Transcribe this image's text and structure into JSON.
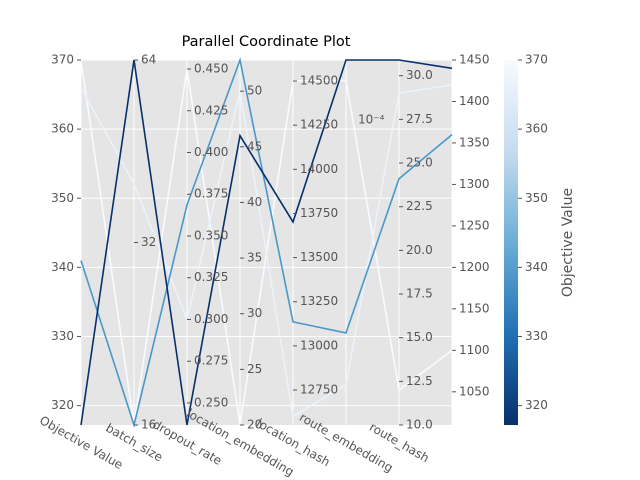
{
  "chart_data": {
    "type": "parallel",
    "title": "Parallel Coordinate Plot",
    "axes": [
      {
        "name": "Objective Value",
        "ylim": [
          317.2,
          370
        ],
        "yticks": [
          320,
          330,
          340,
          350,
          360,
          370
        ]
      },
      {
        "name": "batch_size",
        "ylim": [
          16,
          64
        ],
        "log": true,
        "yticks": [
          16,
          32,
          64
        ]
      },
      {
        "name": "dropout_rate",
        "ylim": [
          0.2368,
          0.4554
        ],
        "yticks": [
          {
            "value": 0.25,
            "label": "0.250"
          },
          {
            "value": 0.275,
            "label": "0.275"
          },
          {
            "value": 0.3,
            "label": "0.300"
          },
          {
            "value": 0.325,
            "label": "0.325"
          },
          {
            "value": 0.35,
            "label": "0.350"
          },
          {
            "value": 0.375,
            "label": "0.375"
          },
          {
            "value": 0.4,
            "label": "0.400"
          },
          {
            "value": 0.425,
            "label": "0.425"
          },
          {
            "value": 0.45,
            "label": "0.450"
          }
        ]
      },
      {
        "name": "location_embedding",
        "ylim": [
          20,
          52.8
        ],
        "yticks": [
          20,
          25,
          30,
          35,
          40,
          45,
          50
        ]
      },
      {
        "name": "location_hash",
        "ylim": [
          12552,
          14619
        ],
        "yticks": [
          12750,
          13000,
          13250,
          13500,
          13750,
          14000,
          14250,
          14500
        ]
      },
      {
        "name": "route_embedding",
        "ylim": [
          1,
          10
        ],
        "yticks": [],
        "offset_label": "10⁻⁴"
      },
      {
        "name": "route_hash",
        "ylim": [
          10,
          30.9
        ],
        "yticks": [
          {
            "value": 10,
            "label": "10.0"
          },
          12.5,
          {
            "value": 15,
            "label": "15.0"
          },
          17.5,
          {
            "value": 20,
            "label": "20.0"
          },
          22.5,
          {
            "value": 25,
            "label": "25.0"
          },
          27.5,
          {
            "value": 30,
            "label": "30.0"
          }
        ]
      },
      {
        "name": null,
        "ylim": [
          1010,
          1450
        ],
        "yticks": [
          1050,
          1100,
          1150,
          1200,
          1250,
          1300,
          1350,
          1400,
          1450
        ]
      }
    ],
    "series": [
      {
        "color": "#f7fbff",
        "values": [
          370,
          16,
          0.45,
          20,
          14500,
          9.5,
          12,
          1100
        ]
      },
      {
        "color": "#eaf2fb",
        "values": [
          366,
          40,
          0.3,
          50,
          12600,
          2,
          29,
          1420
        ]
      },
      {
        "color": "#4a98c9",
        "values": [
          341,
          16,
          0.3686,
          52.8,
          13136,
          3.27,
          24.1,
          1360
        ]
      },
      {
        "color": "#08306b",
        "values": [
          317.2,
          64,
          0.2368,
          46,
          13702,
          10,
          30.9,
          1440
        ]
      }
    ],
    "colorbar": {
      "label": "Objective Value",
      "ylim": [
        317.2,
        370
      ],
      "yticks": [
        320,
        330,
        340,
        350,
        360,
        370
      ],
      "colors": [
        "#08306b",
        "#2171b5",
        "#6baed6",
        "#c6dbef",
        "#f7fbff"
      ]
    }
  }
}
